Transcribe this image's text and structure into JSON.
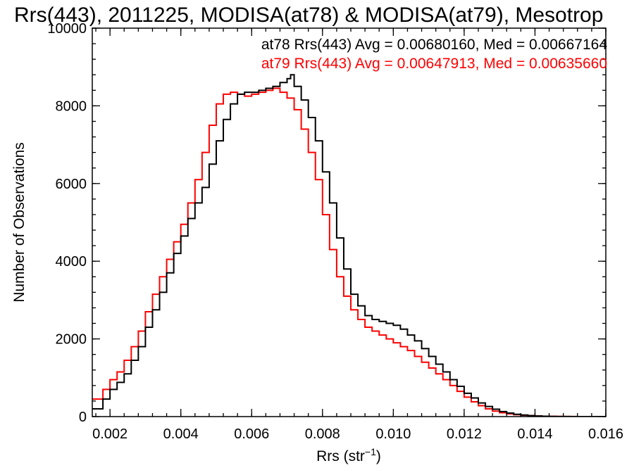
{
  "chart_data": {
    "type": "line",
    "step": true,
    "title": "Rrs(443), 2011225, MODISA(at78) & MODISA(at79), Mesotrop",
    "xlabel": "Rrs (str",
    "xlabel_sup": "−1",
    "xlabel_close": ")",
    "ylabel": "Number of Observations",
    "xlim": [
      0.0015,
      0.016
    ],
    "ylim": [
      0,
      10000
    ],
    "x_ticks": [
      0.002,
      0.004,
      0.006,
      0.008,
      0.01,
      0.012,
      0.014,
      0.016
    ],
    "x_tick_labels": [
      "0.002",
      "0.004",
      "0.006",
      "0.008",
      "0.010",
      "0.012",
      "0.014",
      "0.016"
    ],
    "y_ticks": [
      0,
      2000,
      4000,
      6000,
      8000,
      10000
    ],
    "y_tick_labels": [
      "0",
      "2000",
      "4000",
      "6000",
      "8000",
      "10000"
    ],
    "grid": false,
    "legend_position": "top-right",
    "series": [
      {
        "legend_text": "at78 Rrs(443) Avg = 0.00680160, Med = 0.00667164",
        "color": "#000000",
        "x": [
          0.0015,
          0.0018,
          0.002,
          0.0022,
          0.0024,
          0.0026,
          0.0028,
          0.003,
          0.0032,
          0.0034,
          0.0036,
          0.0038,
          0.004,
          0.0042,
          0.0044,
          0.0046,
          0.0048,
          0.005,
          0.0052,
          0.0054,
          0.0056,
          0.0058,
          0.006,
          0.0062,
          0.0064,
          0.0066,
          0.0068,
          0.007,
          0.0071,
          0.0072,
          0.0074,
          0.0076,
          0.0078,
          0.008,
          0.0082,
          0.0084,
          0.0086,
          0.0088,
          0.009,
          0.0092,
          0.0094,
          0.0096,
          0.0098,
          0.01,
          0.0102,
          0.0104,
          0.0106,
          0.0108,
          0.011,
          0.0112,
          0.0114,
          0.0116,
          0.0118,
          0.012,
          0.0122,
          0.0124,
          0.0126,
          0.0128,
          0.013,
          0.0132,
          0.0134,
          0.0136,
          0.0138,
          0.014,
          0.0142,
          0.0144,
          0.0146,
          0.0148,
          0.015,
          0.0152,
          0.0154,
          0.0156,
          0.0158,
          0.016
        ],
        "y": [
          200,
          450,
          700,
          880,
          1100,
          1450,
          1800,
          2300,
          2750,
          3200,
          3700,
          4200,
          4650,
          5100,
          5500,
          5900,
          6500,
          7100,
          7650,
          8050,
          8300,
          8350,
          8350,
          8400,
          8450,
          8500,
          8600,
          8700,
          8800,
          8500,
          8150,
          7700,
          7100,
          6300,
          5500,
          4600,
          3800,
          3150,
          2850,
          2600,
          2500,
          2450,
          2400,
          2350,
          2250,
          2100,
          1950,
          1750,
          1550,
          1350,
          1150,
          950,
          780,
          600,
          480,
          350,
          260,
          190,
          130,
          90,
          60,
          40,
          25,
          15,
          10,
          5,
          3,
          2,
          1,
          0,
          0,
          0,
          0,
          0
        ]
      },
      {
        "legend_text": "at79 Rrs(443) Avg = 0.00647913, Med = 0.00635660",
        "color": "#ff0000",
        "x": [
          0.0015,
          0.0018,
          0.002,
          0.0022,
          0.0024,
          0.0026,
          0.0028,
          0.003,
          0.0032,
          0.0034,
          0.0036,
          0.0038,
          0.004,
          0.0042,
          0.0044,
          0.0046,
          0.0048,
          0.005,
          0.0052,
          0.0054,
          0.0056,
          0.0058,
          0.006,
          0.0062,
          0.0064,
          0.0066,
          0.0068,
          0.007,
          0.0072,
          0.0074,
          0.0076,
          0.0078,
          0.008,
          0.0082,
          0.0084,
          0.0086,
          0.0088,
          0.009,
          0.0092,
          0.0094,
          0.0096,
          0.0098,
          0.01,
          0.0102,
          0.0104,
          0.0106,
          0.0108,
          0.011,
          0.0112,
          0.0114,
          0.0116,
          0.0118,
          0.012,
          0.0122,
          0.0124,
          0.0126,
          0.0128,
          0.013,
          0.0132,
          0.0134,
          0.0136,
          0.0138,
          0.014,
          0.0142,
          0.0144,
          0.0146,
          0.0148,
          0.015,
          0.0152,
          0.0154,
          0.0156,
          0.0158,
          0.016
        ],
        "y": [
          450,
          700,
          950,
          1150,
          1450,
          1800,
          2200,
          2700,
          3150,
          3600,
          4050,
          4500,
          4950,
          5500,
          6100,
          6800,
          7500,
          8050,
          8300,
          8350,
          8300,
          8250,
          8300,
          8350,
          8400,
          8450,
          8350,
          8200,
          7900,
          7400,
          6800,
          6100,
          5200,
          4300,
          3600,
          3100,
          2750,
          2500,
          2300,
          2200,
          2100,
          2000,
          1900,
          1800,
          1700,
          1550,
          1400,
          1250,
          1100,
          950,
          800,
          650,
          500,
          380,
          280,
          200,
          140,
          100,
          70,
          50,
          35,
          25,
          15,
          10,
          7,
          5,
          3,
          2,
          1,
          0,
          0,
          0,
          0
        ]
      }
    ]
  }
}
